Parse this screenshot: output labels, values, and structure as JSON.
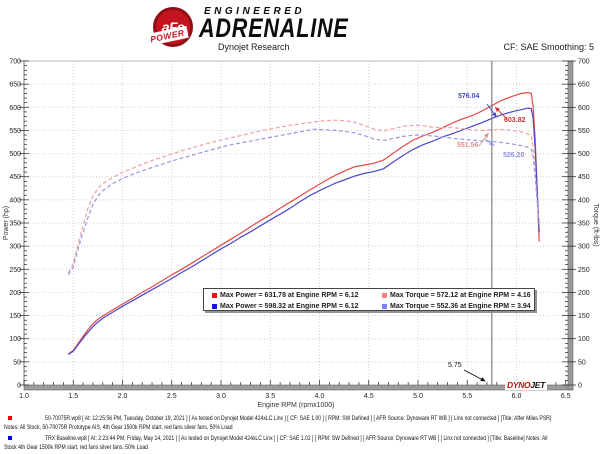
{
  "header": {
    "logo": {
      "circle_text": "aFe",
      "power_text": "POWER"
    },
    "brand": {
      "line1": "ENGINEERED",
      "line2": "ADRENALINE"
    },
    "subtitle": "Dynojet Research",
    "smoothing": "CF: SAE Smoothing: 5"
  },
  "chart_data": {
    "type": "line",
    "xlabel": "Engine RPM (rpmx1000)",
    "ylabel_left": "Power (hp)",
    "ylabel_right": "Torque (ft-lbs)",
    "xlim": [
      1.0,
      6.5
    ],
    "ylim": [
      0,
      700
    ],
    "x_ticks": [
      1.0,
      1.5,
      2.0,
      2.5,
      3.0,
      3.5,
      4.0,
      4.5,
      5.0,
      5.5,
      6.0,
      6.5
    ],
    "y_ticks": [
      0,
      50,
      100,
      150,
      200,
      250,
      300,
      350,
      400,
      450,
      500,
      550,
      600,
      650,
      700
    ],
    "grid": true,
    "cursor": {
      "rpm": 5.75,
      "label": "5.75"
    },
    "series": [
      {
        "name": "power-after",
        "color": "#e04848",
        "dash": false,
        "axis": "left",
        "points": [
          [
            1.45,
            67
          ],
          [
            1.5,
            75
          ],
          [
            1.55,
            90
          ],
          [
            1.6,
            105
          ],
          [
            1.65,
            120
          ],
          [
            1.7,
            132
          ],
          [
            1.75,
            142
          ],
          [
            1.8,
            149
          ],
          [
            1.9,
            162
          ],
          [
            2.0,
            175
          ],
          [
            2.1,
            187
          ],
          [
            2.2,
            200
          ],
          [
            2.3,
            212
          ],
          [
            2.4,
            225
          ],
          [
            2.5,
            238
          ],
          [
            2.6,
            250
          ],
          [
            2.7,
            263
          ],
          [
            2.8,
            276
          ],
          [
            2.9,
            289
          ],
          [
            3.0,
            302
          ],
          [
            3.1,
            315
          ],
          [
            3.2,
            328
          ],
          [
            3.3,
            342
          ],
          [
            3.4,
            355
          ],
          [
            3.5,
            368
          ],
          [
            3.6,
            382
          ],
          [
            3.7,
            395
          ],
          [
            3.8,
            408
          ],
          [
            3.9,
            421
          ],
          [
            4.0,
            434
          ],
          [
            4.1,
            446
          ],
          [
            4.16,
            453
          ],
          [
            4.25,
            462
          ],
          [
            4.35,
            471
          ],
          [
            4.45,
            475
          ],
          [
            4.55,
            479
          ],
          [
            4.65,
            486
          ],
          [
            4.75,
            501
          ],
          [
            4.85,
            516
          ],
          [
            4.95,
            529
          ],
          [
            5.05,
            538
          ],
          [
            5.15,
            546
          ],
          [
            5.25,
            556
          ],
          [
            5.35,
            566
          ],
          [
            5.45,
            575
          ],
          [
            5.55,
            582
          ],
          [
            5.65,
            592
          ],
          [
            5.75,
            603.82
          ],
          [
            5.85,
            615
          ],
          [
            5.95,
            623
          ],
          [
            6.05,
            630
          ],
          [
            6.12,
            631.78
          ],
          [
            6.15,
            630
          ],
          [
            6.17,
            600
          ],
          [
            6.19,
            530
          ],
          [
            6.21,
            420
          ],
          [
            6.23,
            310
          ]
        ]
      },
      {
        "name": "power-baseline",
        "color": "#4848cc",
        "dash": false,
        "axis": "left",
        "points": [
          [
            1.45,
            66
          ],
          [
            1.5,
            73
          ],
          [
            1.55,
            87
          ],
          [
            1.6,
            101
          ],
          [
            1.65,
            114
          ],
          [
            1.7,
            126
          ],
          [
            1.75,
            136
          ],
          [
            1.8,
            144
          ],
          [
            1.9,
            157
          ],
          [
            2.0,
            170
          ],
          [
            2.1,
            182
          ],
          [
            2.2,
            194
          ],
          [
            2.3,
            206
          ],
          [
            2.4,
            218
          ],
          [
            2.5,
            230
          ],
          [
            2.6,
            243
          ],
          [
            2.7,
            255
          ],
          [
            2.8,
            268
          ],
          [
            2.9,
            281
          ],
          [
            3.0,
            294
          ],
          [
            3.1,
            306
          ],
          [
            3.2,
            319
          ],
          [
            3.3,
            331
          ],
          [
            3.4,
            344
          ],
          [
            3.5,
            357
          ],
          [
            3.6,
            369
          ],
          [
            3.7,
            382
          ],
          [
            3.8,
            396
          ],
          [
            3.9,
            409
          ],
          [
            4.0,
            420
          ],
          [
            4.1,
            430
          ],
          [
            4.16,
            436
          ],
          [
            4.25,
            443
          ],
          [
            4.35,
            451
          ],
          [
            4.45,
            457
          ],
          [
            4.55,
            461
          ],
          [
            4.65,
            467
          ],
          [
            4.75,
            482
          ],
          [
            4.85,
            496
          ],
          [
            4.95,
            509
          ],
          [
            5.05,
            519
          ],
          [
            5.15,
            527
          ],
          [
            5.25,
            536
          ],
          [
            5.35,
            543
          ],
          [
            5.45,
            551
          ],
          [
            5.55,
            559
          ],
          [
            5.65,
            567
          ],
          [
            5.75,
            576.04
          ],
          [
            5.85,
            584
          ],
          [
            5.95,
            590
          ],
          [
            6.05,
            595
          ],
          [
            6.12,
            598.32
          ],
          [
            6.15,
            597
          ],
          [
            6.17,
            575
          ],
          [
            6.19,
            510
          ],
          [
            6.21,
            420
          ],
          [
            6.23,
            330
          ]
        ]
      },
      {
        "name": "torque-after",
        "color": "#f0a0a0",
        "dash": true,
        "axis": "right",
        "points": [
          [
            1.45,
            242
          ],
          [
            1.5,
            262
          ],
          [
            1.55,
            305
          ],
          [
            1.6,
            345
          ],
          [
            1.65,
            382
          ],
          [
            1.7,
            408
          ],
          [
            1.75,
            425
          ],
          [
            1.8,
            435
          ],
          [
            1.9,
            448
          ],
          [
            2.0,
            459
          ],
          [
            2.1,
            468
          ],
          [
            2.2,
            477
          ],
          [
            2.3,
            485
          ],
          [
            2.4,
            492
          ],
          [
            2.5,
            499
          ],
          [
            2.6,
            506
          ],
          [
            2.7,
            512
          ],
          [
            2.8,
            518
          ],
          [
            2.9,
            524
          ],
          [
            3.0,
            529
          ],
          [
            3.1,
            534
          ],
          [
            3.2,
            539
          ],
          [
            3.3,
            544
          ],
          [
            3.4,
            549
          ],
          [
            3.5,
            553
          ],
          [
            3.6,
            557
          ],
          [
            3.7,
            561
          ],
          [
            3.8,
            564
          ],
          [
            3.9,
            567
          ],
          [
            4.0,
            570
          ],
          [
            4.1,
            571.5
          ],
          [
            4.16,
            572.12
          ],
          [
            4.25,
            571
          ],
          [
            4.35,
            568
          ],
          [
            4.45,
            561
          ],
          [
            4.55,
            553
          ],
          [
            4.65,
            549
          ],
          [
            4.75,
            554
          ],
          [
            4.85,
            559
          ],
          [
            4.95,
            561
          ],
          [
            5.05,
            560
          ],
          [
            5.15,
            557
          ],
          [
            5.25,
            556
          ],
          [
            5.35,
            556
          ],
          [
            5.45,
            554
          ],
          [
            5.55,
            551
          ],
          [
            5.65,
            550
          ],
          [
            5.75,
            551.56
          ],
          [
            5.85,
            552
          ],
          [
            5.95,
            550
          ],
          [
            6.05,
            547
          ],
          [
            6.12,
            542
          ],
          [
            6.15,
            538
          ],
          [
            6.17,
            515
          ],
          [
            6.19,
            460
          ],
          [
            6.21,
            395
          ],
          [
            6.23,
            345
          ]
        ]
      },
      {
        "name": "torque-baseline",
        "color": "#9898e0",
        "dash": true,
        "axis": "right",
        "points": [
          [
            1.45,
            238
          ],
          [
            1.5,
            255
          ],
          [
            1.55,
            295
          ],
          [
            1.6,
            330
          ],
          [
            1.65,
            362
          ],
          [
            1.7,
            390
          ],
          [
            1.75,
            408
          ],
          [
            1.8,
            420
          ],
          [
            1.9,
            435
          ],
          [
            2.0,
            446
          ],
          [
            2.1,
            455
          ],
          [
            2.2,
            463
          ],
          [
            2.3,
            470
          ],
          [
            2.4,
            477
          ],
          [
            2.5,
            484
          ],
          [
            2.6,
            490
          ],
          [
            2.7,
            496
          ],
          [
            2.8,
            502
          ],
          [
            2.9,
            508
          ],
          [
            3.0,
            514
          ],
          [
            3.1,
            519
          ],
          [
            3.2,
            523
          ],
          [
            3.3,
            527
          ],
          [
            3.4,
            531
          ],
          [
            3.5,
            535
          ],
          [
            3.6,
            539
          ],
          [
            3.7,
            543
          ],
          [
            3.8,
            547
          ],
          [
            3.9,
            551
          ],
          [
            3.94,
            552.36
          ],
          [
            4.0,
            552
          ],
          [
            4.1,
            551
          ],
          [
            4.16,
            550
          ],
          [
            4.25,
            548
          ],
          [
            4.35,
            545
          ],
          [
            4.45,
            539
          ],
          [
            4.55,
            532
          ],
          [
            4.65,
            528
          ],
          [
            4.75,
            533
          ],
          [
            4.85,
            537
          ],
          [
            4.95,
            540
          ],
          [
            5.05,
            540
          ],
          [
            5.15,
            538
          ],
          [
            5.25,
            536
          ],
          [
            5.35,
            533
          ],
          [
            5.45,
            531
          ],
          [
            5.55,
            529
          ],
          [
            5.65,
            527
          ],
          [
            5.75,
            526.2
          ],
          [
            5.85,
            524
          ],
          [
            5.95,
            521
          ],
          [
            6.05,
            517
          ],
          [
            6.12,
            513.5
          ],
          [
            6.15,
            510
          ],
          [
            6.17,
            492
          ],
          [
            6.19,
            450
          ],
          [
            6.21,
            400
          ],
          [
            6.23,
            350
          ]
        ]
      }
    ],
    "callouts": [
      {
        "text": "576.04",
        "color": "#4848cc"
      },
      {
        "text": "603.82",
        "color": "#cc3333"
      },
      {
        "text": "551.56",
        "color": "#e09090"
      },
      {
        "text": "526.20",
        "color": "#9090dd"
      }
    ],
    "legend": {
      "rows": [
        [
          {
            "swatch": "#ee1111",
            "label": "Max Power = 631.78 at Engine RPM = 6.12"
          },
          {
            "swatch": "#ff8080",
            "label": "Max Torque = 572.12 at Engine RPM = 4.16"
          }
        ],
        [
          {
            "swatch": "#1111ee",
            "label": "Max Power = 598.32 at Engine RPM = 6.12"
          },
          {
            "swatch": "#8080ff",
            "label": "Max Torque = 552.36 at Engine RPM = 3.94"
          }
        ]
      ]
    },
    "watermark": {
      "part1": "DYNO",
      "part2": "JET"
    }
  },
  "footer": {
    "entries": [
      {
        "bullet_color": "#ff0000",
        "lines": [
          "50-70075R.wp8 [ At: 12:25:56 PM, Tuesday, October 19, 2021 ] [ As tested on Dynojet Model 424xLC Linx ] [ CF: SAE 1.00 ] [ RPM: SW Defined ] [ AFR Source: Dynoware RT WB ] [ Linx not connected ] [Title: After Miles PSR]",
          "Notes: All Stock, 50-70075R Prototype AIS, 4th Gear 1500k RPM start, red fans silver fans, 50% Load"
        ]
      },
      {
        "bullet_color": "#0000ff",
        "lines": [
          "TRX Baseline.wp8 [ At: 2:23:44 PM, Friday, May 14, 2021 ] [ As tested on Dynojet Model 424xLC Linx ] [ CF: SAE 1.02 ] [ RPM: SW Defined ] [ AFR Source: Dynoware RT WB ] [ Linx not connected ] [Title: Baseline]  Notes: All",
          "Stock 4th Gear 1500k RPM start, red fans silver fans, 50% Load"
        ]
      }
    ]
  }
}
